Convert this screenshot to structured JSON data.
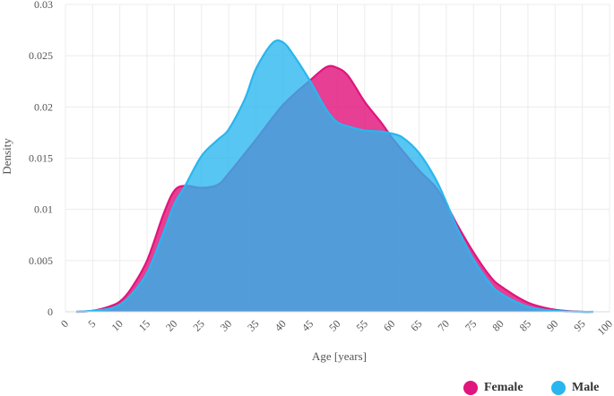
{
  "chart_data": {
    "type": "area",
    "title": "",
    "xlabel": "Age [years]",
    "ylabel": "Density",
    "xlim": [
      0,
      100
    ],
    "ylim": [
      0,
      0.03
    ],
    "x_ticks": [
      "0",
      "5",
      "10",
      "15",
      "20",
      "25",
      "30",
      "35",
      "40",
      "45",
      "50",
      "55",
      "60",
      "65",
      "70",
      "75",
      "80",
      "85",
      "90",
      "95",
      "100"
    ],
    "y_ticks": [
      "0",
      "0.005",
      "0.01",
      "0.015",
      "0.02",
      "0.025",
      "0.03"
    ],
    "grid": true,
    "legend_position": "bottom-right",
    "series": [
      {
        "name": "Female",
        "color": "#e0157d",
        "x": [
          2,
          5,
          8,
          10,
          12,
          15,
          18,
          20,
          22,
          25,
          28,
          30,
          35,
          40,
          45,
          48,
          50,
          52,
          55,
          58,
          60,
          62,
          65,
          68,
          70,
          72,
          75,
          78,
          80,
          85,
          90,
          95,
          97
        ],
        "y": [
          0.0,
          0.0001,
          0.0005,
          0.001,
          0.0022,
          0.005,
          0.0095,
          0.0118,
          0.0123,
          0.0121,
          0.0124,
          0.0135,
          0.0168,
          0.0202,
          0.0226,
          0.0239,
          0.0238,
          0.023,
          0.0205,
          0.0185,
          0.017,
          0.0157,
          0.0138,
          0.0122,
          0.0105,
          0.0085,
          0.0058,
          0.0035,
          0.0025,
          0.0009,
          0.0002,
          0.0,
          0.0
        ]
      },
      {
        "name": "Male",
        "color": "#29b6ee",
        "x": [
          2,
          5,
          8,
          10,
          12,
          15,
          18,
          20,
          22,
          25,
          28,
          30,
          33,
          35,
          38,
          40,
          42,
          45,
          48,
          50,
          52,
          55,
          58,
          60,
          62,
          65,
          68,
          70,
          72,
          75,
          78,
          80,
          85,
          90,
          95,
          97
        ],
        "y": [
          0.0,
          0.0001,
          0.0003,
          0.0007,
          0.0016,
          0.0038,
          0.0077,
          0.0105,
          0.0123,
          0.0152,
          0.0168,
          0.0178,
          0.0208,
          0.0237,
          0.0262,
          0.0263,
          0.025,
          0.0225,
          0.0197,
          0.0185,
          0.0181,
          0.0177,
          0.0176,
          0.0174,
          0.017,
          0.0155,
          0.013,
          0.0107,
          0.0082,
          0.0051,
          0.0028,
          0.0018,
          0.0005,
          0.0001,
          0.0,
          0.0
        ]
      }
    ]
  }
}
